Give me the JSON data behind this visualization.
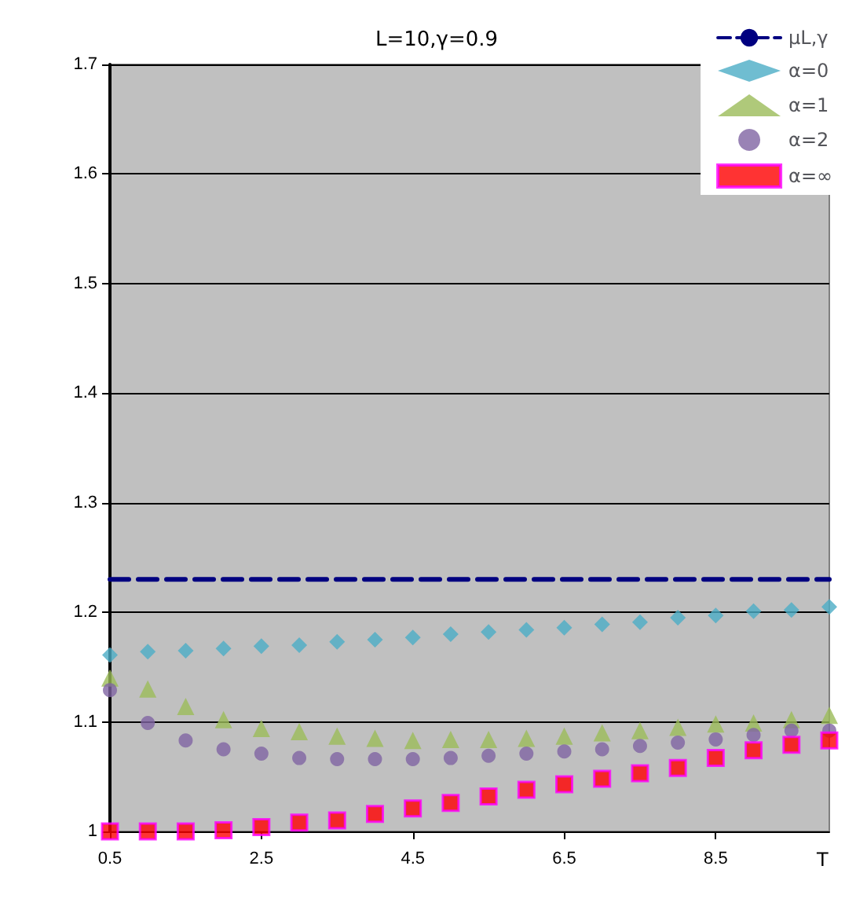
{
  "chart_data": {
    "type": "scatter",
    "title": "L=10,γ=0.9",
    "xlabel": "T",
    "x": [
      0.5,
      1,
      1.5,
      2,
      2.5,
      3,
      3.5,
      4,
      4.5,
      5,
      5.5,
      6,
      6.5,
      7,
      7.5,
      8,
      8.5,
      9,
      9.5,
      10
    ],
    "series": [
      {
        "name": "μL,γ",
        "type": "line",
        "color": "#000080",
        "line_style": "dashed",
        "marker": "none",
        "values": [
          1.23,
          1.23,
          1.23,
          1.23,
          1.23,
          1.23,
          1.23,
          1.23,
          1.23,
          1.23,
          1.23,
          1.23,
          1.23,
          1.23,
          1.23,
          1.23,
          1.23,
          1.23,
          1.23,
          1.23
        ]
      },
      {
        "name": "α=0",
        "color": "#4bacc6",
        "marker": "diamond",
        "values": [
          1.161,
          1.164,
          1.165,
          1.167,
          1.169,
          1.17,
          1.173,
          1.175,
          1.177,
          1.18,
          1.182,
          1.184,
          1.186,
          1.189,
          1.191,
          1.195,
          1.197,
          1.201,
          1.202,
          1.205
        ]
      },
      {
        "name": "α=1",
        "color": "#9bbb59",
        "marker": "triangle",
        "values": [
          1.14,
          1.13,
          1.114,
          1.102,
          1.094,
          1.091,
          1.087,
          1.085,
          1.083,
          1.084,
          1.084,
          1.085,
          1.087,
          1.09,
          1.092,
          1.095,
          1.098,
          1.099,
          1.102,
          1.106
        ]
      },
      {
        "name": "α=2",
        "color": "#8064a2",
        "marker": "circle",
        "values": [
          1.129,
          1.099,
          1.083,
          1.075,
          1.071,
          1.067,
          1.066,
          1.066,
          1.066,
          1.067,
          1.069,
          1.071,
          1.073,
          1.075,
          1.078,
          1.081,
          1.084,
          1.088,
          1.092,
          1.092
        ]
      },
      {
        "name": "α=∞",
        "color": "#ff0000",
        "marker": "square",
        "values": [
          1.0,
          1.0,
          1.0,
          1.001,
          1.004,
          1.008,
          1.01,
          1.016,
          1.021,
          1.026,
          1.032,
          1.038,
          1.043,
          1.048,
          1.053,
          1.058,
          1.067,
          1.074,
          1.079,
          1.083
        ]
      }
    ],
    "xlim": [
      0.5,
      10
    ],
    "xticks": [
      0.5,
      2.5,
      4.5,
      6.5,
      8.5
    ],
    "ylim": [
      1,
      1.7
    ],
    "yticks": [
      1,
      1.1,
      1.2,
      1.3,
      1.4,
      1.5,
      1.6,
      1.7
    ],
    "grid": "y",
    "legend": "top right"
  }
}
